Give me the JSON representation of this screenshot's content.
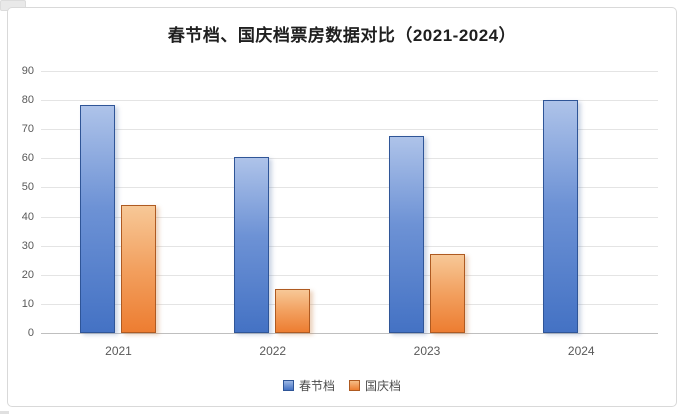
{
  "chart_data": {
    "type": "bar",
    "title": "春节档、国庆档票房数据对比（2021-2024）",
    "categories": [
      "2021",
      "2022",
      "2023",
      "2024"
    ],
    "series": [
      {
        "name": "春节档",
        "color": "#4472C4",
        "color_light": "#AEC3E9",
        "border_color": "#2F5597",
        "values": [
          78.4,
          60.4,
          67.6,
          80.2
        ]
      },
      {
        "name": "国庆档",
        "color": "#ED7D31",
        "color_light": "#F7C897",
        "border_color": "#AE5A21",
        "values": [
          43.9,
          15.0,
          27.3,
          null
        ]
      }
    ],
    "ylim": [
      0,
      90
    ],
    "ytick_step": 10,
    "ytick_labels": [
      "0",
      "10",
      "20",
      "30",
      "40",
      "50",
      "60",
      "70",
      "80",
      "90"
    ],
    "grid": true,
    "gridline_color": "#E4E4E4",
    "axis_line_color": "#BFBFBF",
    "tick_label_color": "#595959",
    "legend_position": "bottom"
  }
}
